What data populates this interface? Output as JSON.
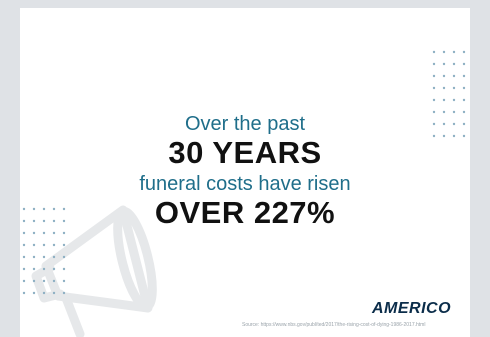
{
  "headline": {
    "line1": "Over the past",
    "line2": "30 YEARS",
    "line3": "funeral costs have risen",
    "line4": "OVER 227%"
  },
  "brand": {
    "name": "AMERICO"
  },
  "source": {
    "text": "Source: https://www.nbs.gov/publ/ted/2017/the-rising-cost-of-dying-1986-2017.html"
  },
  "colors": {
    "accent": "#1f6e8a",
    "headline": "#111111",
    "brand": "#0b2d4a",
    "background": "#dfe2e6"
  },
  "icons": [
    "megaphone-icon"
  ]
}
